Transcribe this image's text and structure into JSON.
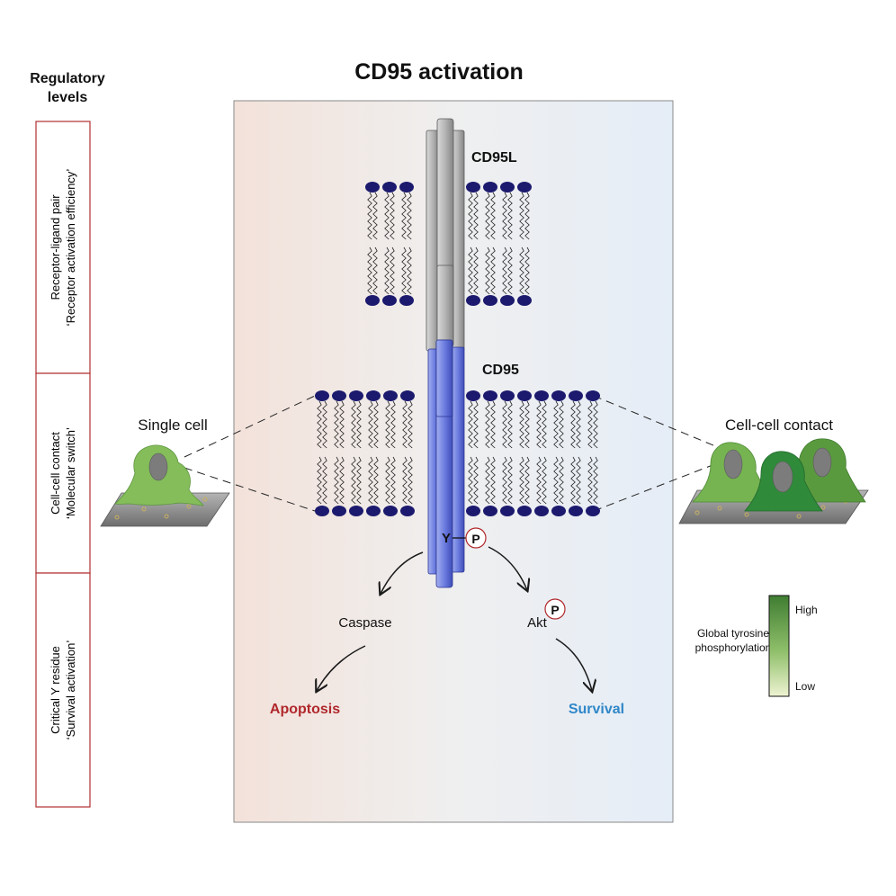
{
  "title": "CD95 activation",
  "left_header": {
    "line1": "Regulatory",
    "line2": "levels"
  },
  "levels": [
    {
      "line1": "Receptor-ligand pair",
      "line2": "‘Receptor activation efficiency’"
    },
    {
      "line1": "Cell-cell contact",
      "line2": "‘Molecular switch’"
    },
    {
      "line1": "Critical Y residue",
      "line2": "‘Survival activation’"
    }
  ],
  "labels": {
    "ligand": "CD95L",
    "receptor": "CD95",
    "single_cell": "Single cell",
    "cell_contact": "Cell-cell contact",
    "tyrosine": "Y",
    "phospho": "P",
    "phospho_akt": "P",
    "caspase": "Caspase",
    "akt": "Akt",
    "apoptosis": "Apoptosis",
    "survival": "Survival"
  },
  "legend": {
    "title_line1": "Global tyrosine",
    "title_line2": "phosphorylation",
    "high": "High",
    "low": "Low"
  },
  "colors": {
    "apoptosis": "#b0282c",
    "survival": "#2f87c8",
    "lipid_head": "#1c1a6e",
    "receptor": "#5c6bd6",
    "ligand": "#9a9a9a",
    "level_border": "#b03030",
    "panel_left": "#f3e3dc",
    "panel_right": "#e6eef7"
  }
}
